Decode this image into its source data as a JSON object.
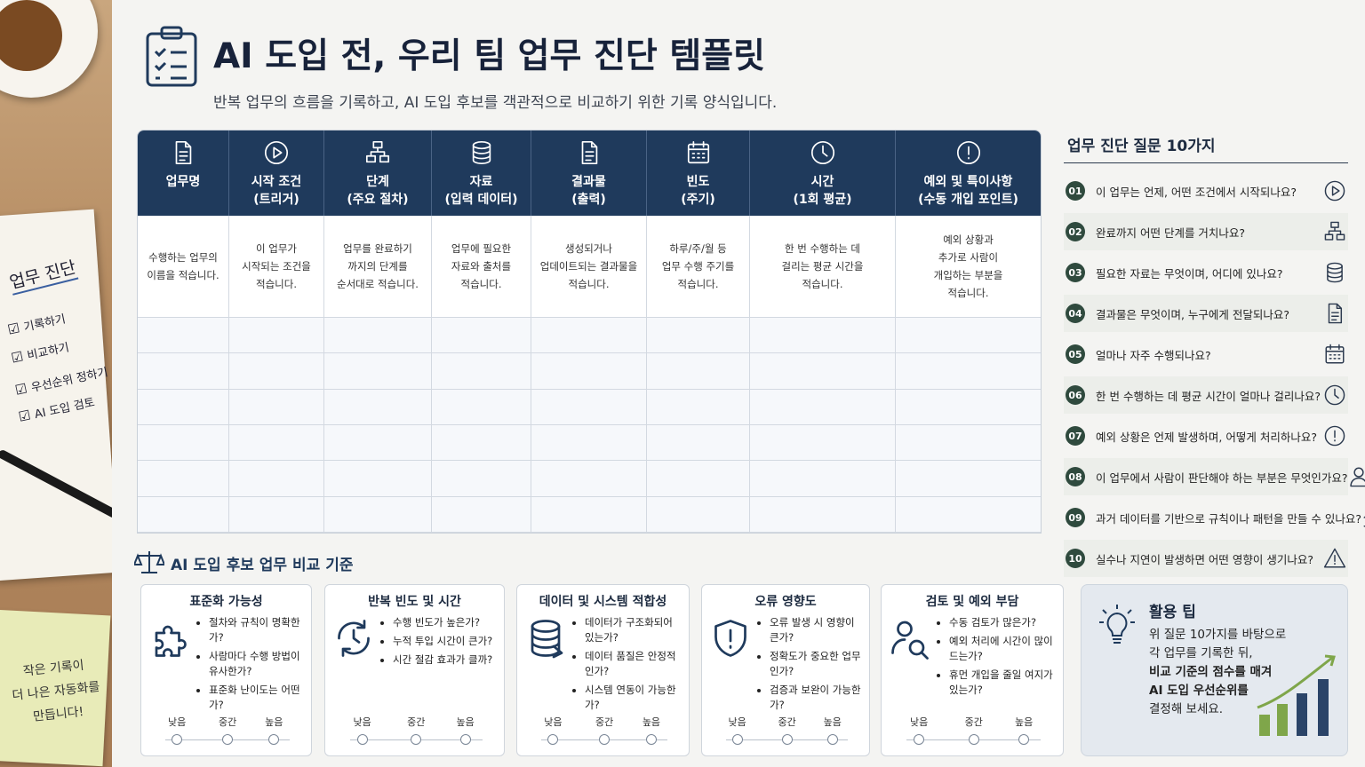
{
  "header": {
    "title": "AI 도입 전, 우리 팀 업무 진단 템플릿",
    "subtitle": "반복 업무의 흐름을 기록하고, AI 도입 후보를 객관적으로 비교하기 위한 기록 양식입니다."
  },
  "side_note": {
    "title": "업무 진단",
    "items": [
      "기록하기",
      "비교하기",
      "우선순위 정하기",
      "AI 도입 검토"
    ]
  },
  "sticky_note": {
    "lines": [
      "작은 기록이",
      "더 나은 자동화를",
      "만듭니다!"
    ]
  },
  "table": {
    "columns": [
      {
        "title": "업무명",
        "hint": [
          "수행하는 업무의",
          "이름을 적습니다."
        ]
      },
      {
        "title": "시작 조건",
        "subtitle": "(트리거)",
        "hint": [
          "이 업무가",
          "시작되는 조건을",
          "적습니다."
        ]
      },
      {
        "title": "단계",
        "subtitle": "(주요 절차)",
        "hint": [
          "업무를 완료하기",
          "까지의 단계를",
          "순서대로 적습니다."
        ]
      },
      {
        "title": "자료",
        "subtitle": "(입력 데이터)",
        "hint": [
          "업무에 필요한",
          "자료와 출처를",
          "적습니다."
        ]
      },
      {
        "title": "결과물",
        "subtitle": "(출력)",
        "hint": [
          "생성되거나",
          "업데이트되는 결과물을",
          "적습니다."
        ]
      },
      {
        "title": "빈도",
        "subtitle": "(주기)",
        "hint": [
          "하루/주/월 등",
          "업무 수행 주기를",
          "적습니다."
        ]
      },
      {
        "title": "시간",
        "subtitle": "(1회 평균)",
        "hint": [
          "한 번 수행하는 데",
          "걸리는 평균 시간을",
          "적습니다."
        ]
      },
      {
        "title": "예외 및 특이사항",
        "subtitle": "(수동 개입 포인트)",
        "hint": [
          "예외 상황과",
          "추가로 사람이",
          "개입하는 부분을",
          "적습니다."
        ]
      }
    ]
  },
  "questions": {
    "title": "업무 진단 질문 10가지",
    "items": [
      {
        "number": "01",
        "text": "이 업무는 언제, 어떤 조건에서 시작되나요?"
      },
      {
        "number": "02",
        "text": "완료까지 어떤 단계를 거치나요?"
      },
      {
        "number": "03",
        "text": "필요한 자료는 무엇이며, 어디에 있나요?"
      },
      {
        "number": "04",
        "text": "결과물은 무엇이며, 누구에게 전달되나요?"
      },
      {
        "number": "05",
        "text": "얼마나 자주 수행되나요?"
      },
      {
        "number": "06",
        "text": "한 번 수행하는 데 평균 시간이 얼마나 걸리나요?"
      },
      {
        "number": "07",
        "text": "예외 상황은 언제 발생하며, 어떻게 처리하나요?"
      },
      {
        "number": "08",
        "text": "이 업무에서 사람이 판단해야 하는 부분은 무엇인가요?"
      },
      {
        "number": "09",
        "text": "과거 데이터를 기반으로 규칙이나 패턴을 만들 수 있나요?"
      },
      {
        "number": "10",
        "text": "실수나 지연이 발생하면 어떤 영향이 생기나요?"
      }
    ]
  },
  "criteria": {
    "title": "AI 도입 후보 업무 비교 기준",
    "scale_labels": [
      "낮음",
      "중간",
      "높음"
    ],
    "cards": [
      {
        "title": "표준화 가능성",
        "items": [
          "절차와 규칙이 명확한가?",
          "사람마다 수행 방법이 유사한가?",
          "표준화 난이도는 어떤가?"
        ]
      },
      {
        "title": "반복 빈도 및 시간",
        "items": [
          "수행 빈도가 높은가?",
          "누적 투입 시간이 큰가?",
          "시간 절감 효과가 클까?"
        ]
      },
      {
        "title": "데이터 및 시스템 적합성",
        "items": [
          "데이터가 구조화되어 있는가?",
          "데이터 품질은 안정적인가?",
          "시스템 연동이 가능한가?"
        ]
      },
      {
        "title": "오류 영향도",
        "items": [
          "오류 발생 시 영향이 큰가?",
          "정확도가 중요한 업무인가?",
          "검증과 보완이 가능한가?"
        ]
      },
      {
        "title": "검토 및 예외 부담",
        "items": [
          "수동 검토가 많은가?",
          "예외 처리에 시간이 많이 드는가?",
          "휴먼 개입을 줄일 여지가 있는가?"
        ]
      }
    ]
  },
  "tip": {
    "title": "활용 팁",
    "lines": [
      "위 질문 10가지를 바탕으로",
      "각 업무를 기록한 뒤,",
      "비교 기준의 점수를 매겨",
      "AI 도입 우선순위를",
      "결정해 보세요."
    ]
  }
}
